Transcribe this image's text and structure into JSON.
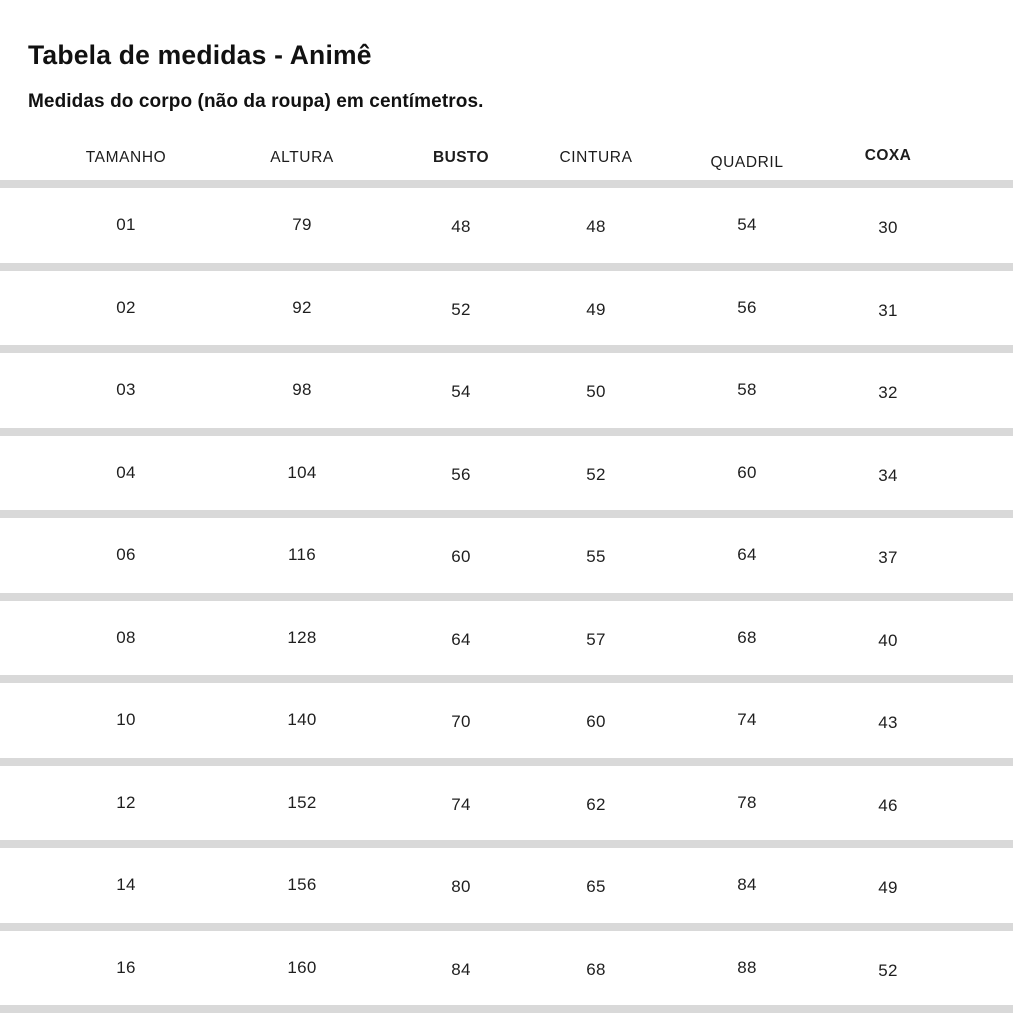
{
  "title": "Tabela de medidas - Animê",
  "subtitle": "Medidas do corpo (não da roupa) em centímetros.",
  "table": {
    "headers": [
      {
        "label": "TAMANHO",
        "bold": false
      },
      {
        "label": "ALTURA",
        "bold": false
      },
      {
        "label": "BUSTO",
        "bold": true
      },
      {
        "label": "CINTURA",
        "bold": false
      },
      {
        "label": "QUADRIL",
        "bold": false
      },
      {
        "label": "COXA",
        "bold": true
      }
    ],
    "rows": [
      [
        "01",
        "79",
        "48",
        "48",
        "54",
        "30"
      ],
      [
        "02",
        "92",
        "52",
        "49",
        "56",
        "31"
      ],
      [
        "03",
        "98",
        "54",
        "50",
        "58",
        "32"
      ],
      [
        "04",
        "104",
        "56",
        "52",
        "60",
        "34"
      ],
      [
        "06",
        "116",
        "60",
        "55",
        "64",
        "37"
      ],
      [
        "08",
        "128",
        "64",
        "57",
        "68",
        "40"
      ],
      [
        "10",
        "140",
        "70",
        "60",
        "74",
        "43"
      ],
      [
        "12",
        "152",
        "74",
        "62",
        "78",
        "46"
      ],
      [
        "14",
        "156",
        "80",
        "65",
        "84",
        "49"
      ],
      [
        "16",
        "160",
        "84",
        "68",
        "88",
        "52"
      ]
    ]
  },
  "colors": {
    "divider": "#d9d9d9",
    "text": "#1a1a1a"
  }
}
